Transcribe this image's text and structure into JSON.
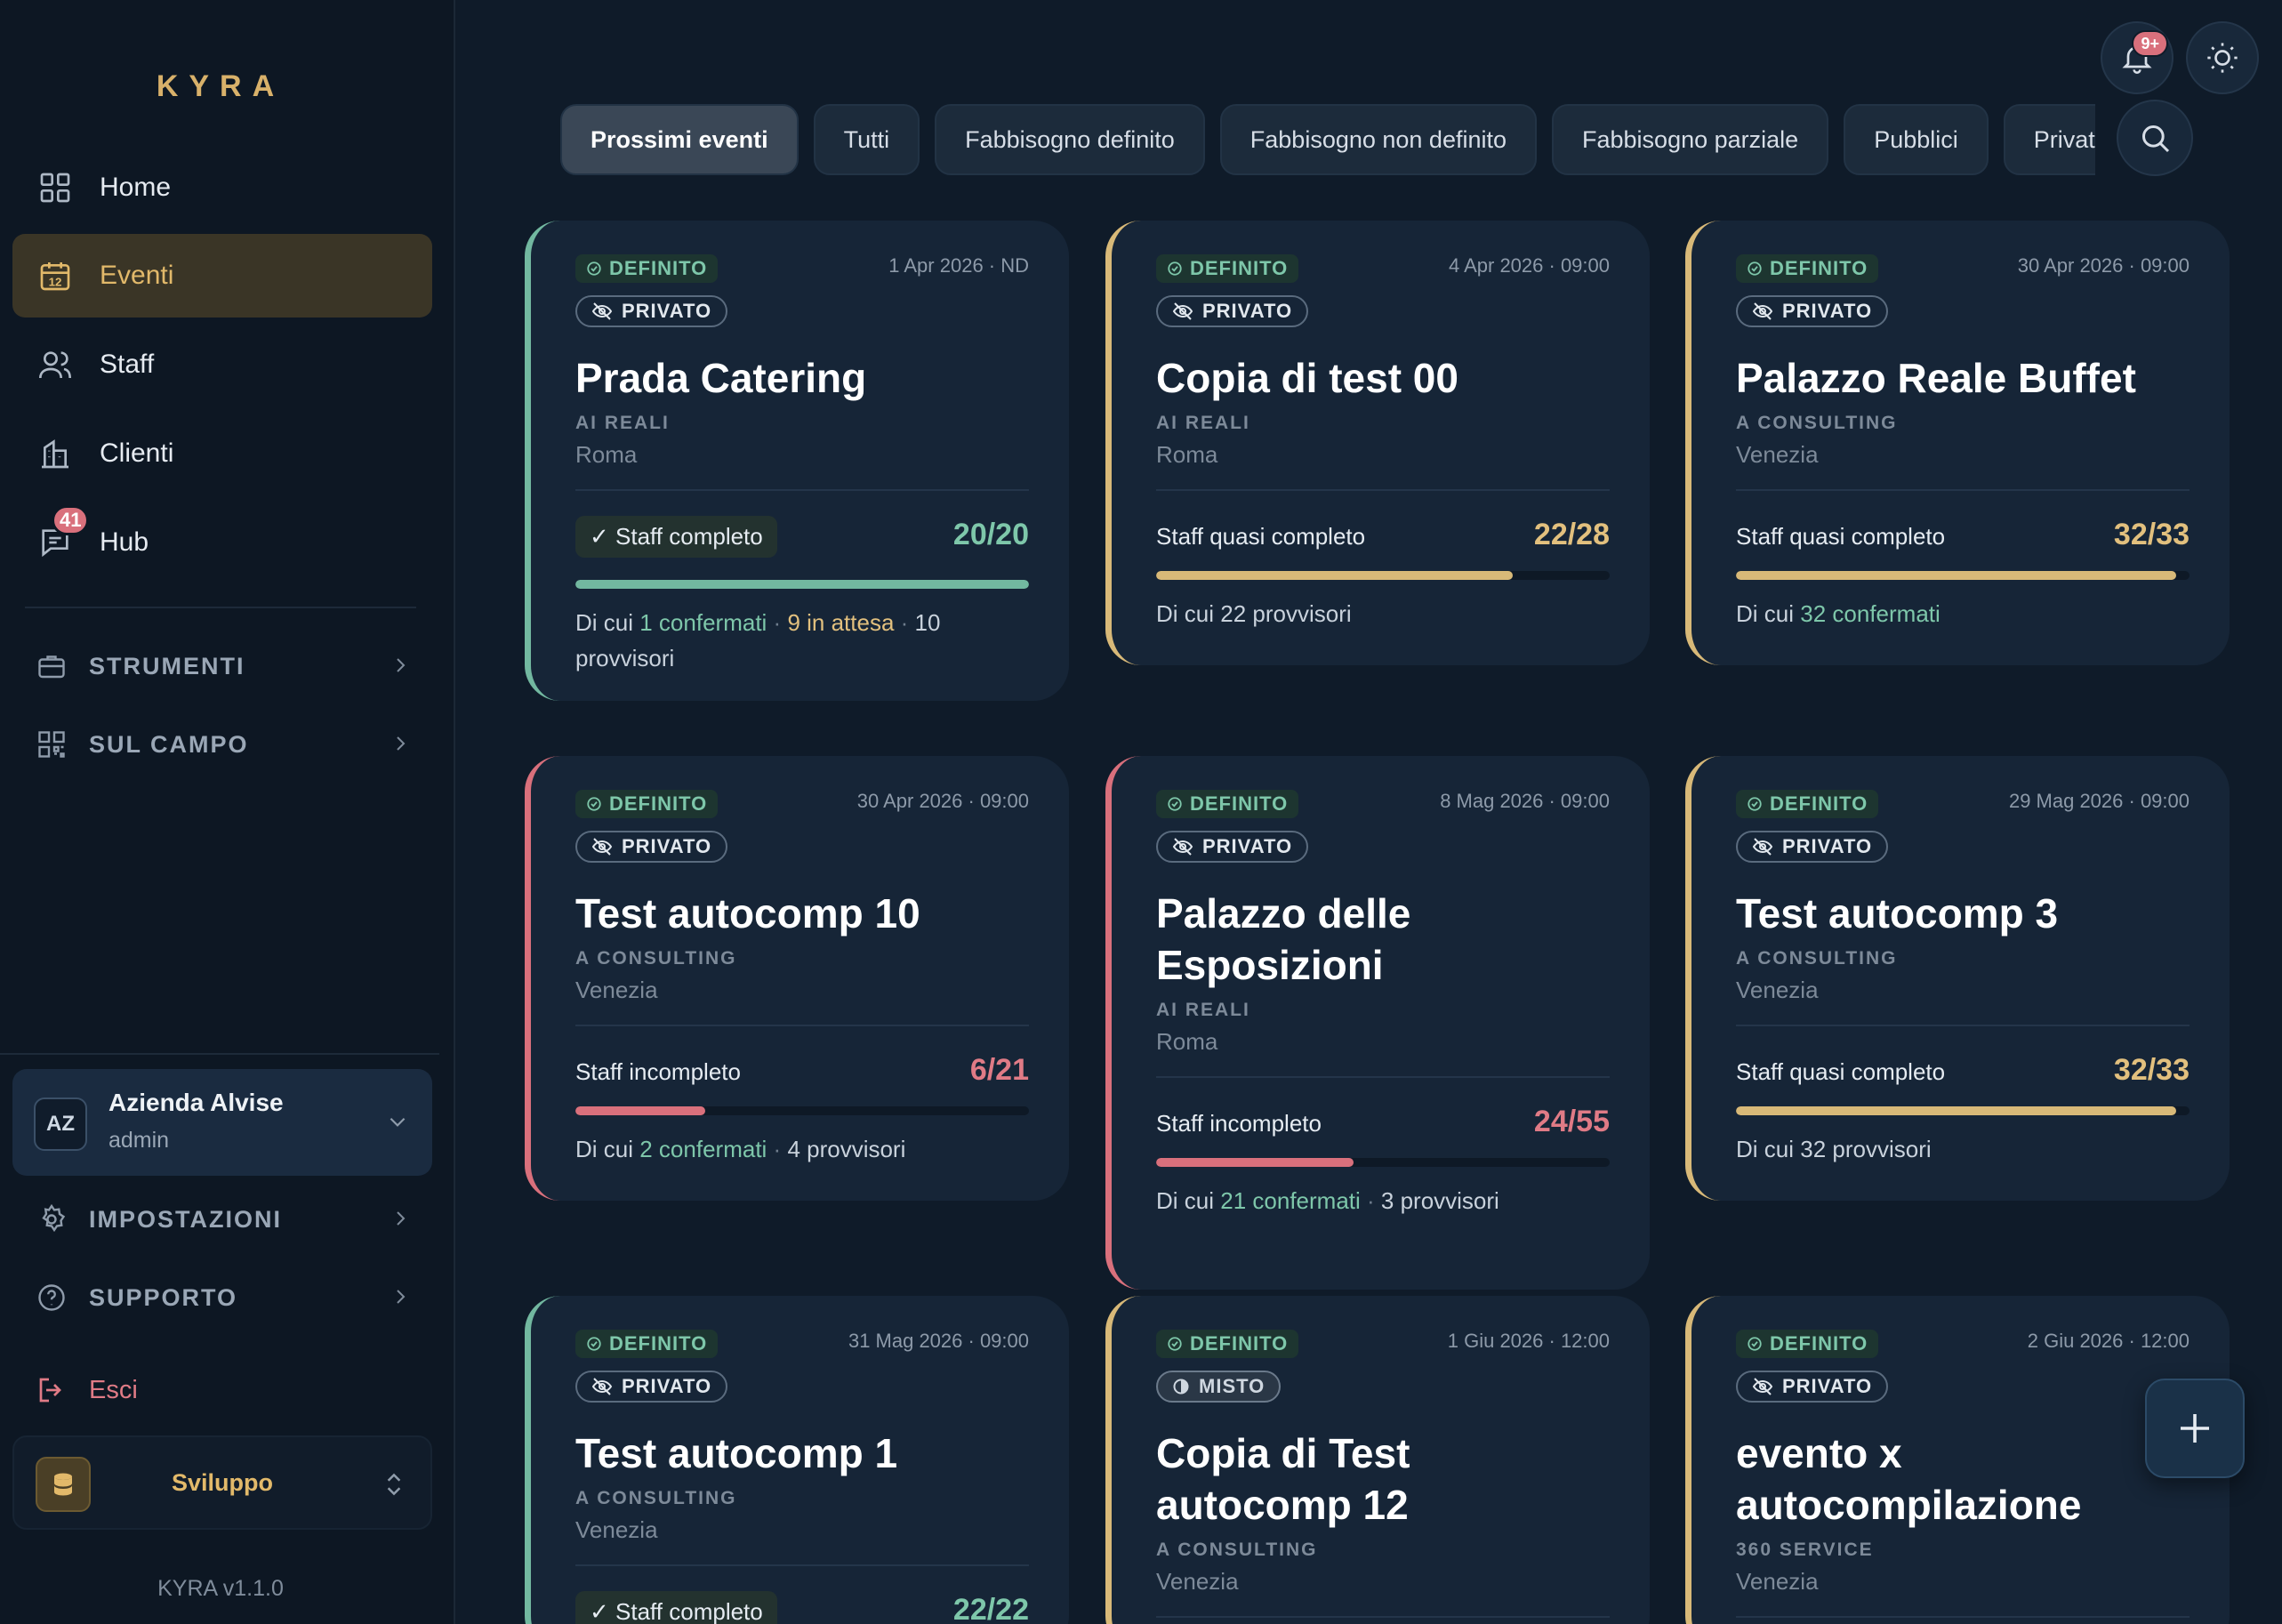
{
  "app": {
    "logo": "KYRA",
    "version": "KYRA v1.1.0"
  },
  "sidebar": {
    "nav": [
      {
        "label": "Home",
        "icon": "grid-icon"
      },
      {
        "label": "Eventi",
        "icon": "calendar-icon",
        "calendar_day": "12",
        "active": true
      },
      {
        "label": "Staff",
        "icon": "users-icon"
      },
      {
        "label": "Clienti",
        "icon": "building-icon"
      },
      {
        "label": "Hub",
        "icon": "chat-icon",
        "badge": "41"
      }
    ],
    "sections": [
      {
        "label": "STRUMENTI",
        "icon": "briefcase-icon"
      },
      {
        "label": "SUL CAMPO",
        "icon": "qr-icon"
      }
    ],
    "account": {
      "initials": "AZ",
      "name": "Azienda Alvise",
      "role": "admin"
    },
    "bottom": [
      {
        "label": "IMPOSTAZIONI",
        "icon": "gear-icon"
      },
      {
        "label": "SUPPORTO",
        "icon": "help-icon"
      }
    ],
    "logout": "Esci",
    "environment": "Sviluppo"
  },
  "topbar": {
    "notifications_badge": "9+"
  },
  "filters": [
    "Prossimi eventi",
    "Tutti",
    "Fabbisogno definito",
    "Fabbisogno non definito",
    "Fabbisogno parziale",
    "Pubblici",
    "Privat"
  ],
  "cards": [
    {
      "status_badge": "DEFINITO",
      "visibility": "PRIVATO",
      "date": "1 Apr 2026 · ND",
      "title": "Prada Catering",
      "client": "AI REALI",
      "city": "Roma",
      "staff_status": "✓ Staff completo",
      "count": "20/20",
      "progress": 1.0,
      "color": "green",
      "details": [
        {
          "t": "Di cui "
        },
        {
          "t": "1 confermati",
          "c": "g"
        },
        {
          "t": " · ",
          "c": "dot"
        },
        {
          "t": "9 in attesa",
          "c": "y"
        },
        {
          "t": " · ",
          "c": "dot"
        },
        {
          "t": "10 provvisori"
        }
      ]
    },
    {
      "status_badge": "DEFINITO",
      "visibility": "PRIVATO",
      "date": "4 Apr 2026 · 09:00",
      "title": "Copia di test 00",
      "client": "AI REALI",
      "city": "Roma",
      "staff_status": "Staff quasi completo",
      "count": "22/28",
      "progress": 0.786,
      "color": "yellow",
      "details": [
        {
          "t": "Di cui 22 provvisori"
        }
      ]
    },
    {
      "status_badge": "DEFINITO",
      "visibility": "PRIVATO",
      "date": "30 Apr 2026 · 09:00",
      "title": "Palazzo Reale Buffet",
      "client": "A CONSULTING",
      "city": "Venezia",
      "staff_status": "Staff quasi completo",
      "count": "32/33",
      "progress": 0.97,
      "color": "yellow",
      "details": [
        {
          "t": "Di cui "
        },
        {
          "t": "32 confermati",
          "c": "g"
        }
      ]
    },
    {
      "status_badge": "DEFINITO",
      "visibility": "PRIVATO",
      "date": "30 Apr 2026 · 09:00",
      "title": "Test autocomp 10",
      "client": "A CONSULTING",
      "city": "Venezia",
      "staff_status": "Staff incompleto",
      "count": "6/21",
      "progress": 0.286,
      "color": "red",
      "details": [
        {
          "t": "Di cui "
        },
        {
          "t": "2 confermati",
          "c": "g"
        },
        {
          "t": " · ",
          "c": "dot"
        },
        {
          "t": "4 provvisori"
        }
      ]
    },
    {
      "status_badge": "DEFINITO",
      "visibility": "PRIVATO",
      "date": "8 Mag 2026 · 09:00",
      "title": "Palazzo delle Esposizioni",
      "client": "AI REALI",
      "city": "Roma",
      "staff_status": "Staff incompleto",
      "count": "24/55",
      "progress": 0.436,
      "color": "red",
      "details": [
        {
          "t": "Di cui "
        },
        {
          "t": "21 confermati",
          "c": "g"
        },
        {
          "t": " · ",
          "c": "dot"
        },
        {
          "t": "3 provvisori"
        }
      ]
    },
    {
      "status_badge": "DEFINITO",
      "visibility": "PRIVATO",
      "date": "29 Mag 2026 · 09:00",
      "title": "Test autocomp 3",
      "client": "A CONSULTING",
      "city": "Venezia",
      "staff_status": "Staff quasi completo",
      "count": "32/33",
      "progress": 0.97,
      "color": "yellow",
      "details": [
        {
          "t": "Di cui 32 provvisori"
        }
      ]
    },
    {
      "status_badge": "DEFINITO",
      "visibility": "PRIVATO",
      "date": "31 Mag 2026 · 09:00",
      "title": "Test autocomp 1",
      "client": "A CONSULTING",
      "city": "Venezia",
      "staff_status": "✓ Staff completo",
      "count": "22/22",
      "progress": 1.0,
      "color": "green",
      "details": []
    },
    {
      "status_badge": "DEFINITO",
      "visibility": "MISTO",
      "date": "1 Giu 2026 · 12:00",
      "title": "Copia di Test autocomp 12",
      "client": "A CONSULTING",
      "city": "Venezia",
      "staff_status": "",
      "count": "",
      "progress": 0,
      "color": "yellow",
      "details": []
    },
    {
      "status_badge": "DEFINITO",
      "visibility": "PRIVATO",
      "date": "2 Giu 2026 · 12:00",
      "title": "evento x autocompilazione",
      "client": "360 SERVICE",
      "city": "Venezia",
      "staff_status": "",
      "count": "",
      "progress": 0,
      "color": "yellow",
      "details": []
    }
  ],
  "colors": {
    "accent": "#e2b96a",
    "green": "#72b8a0",
    "yellow": "#d8b978",
    "red": "#d9707c"
  }
}
